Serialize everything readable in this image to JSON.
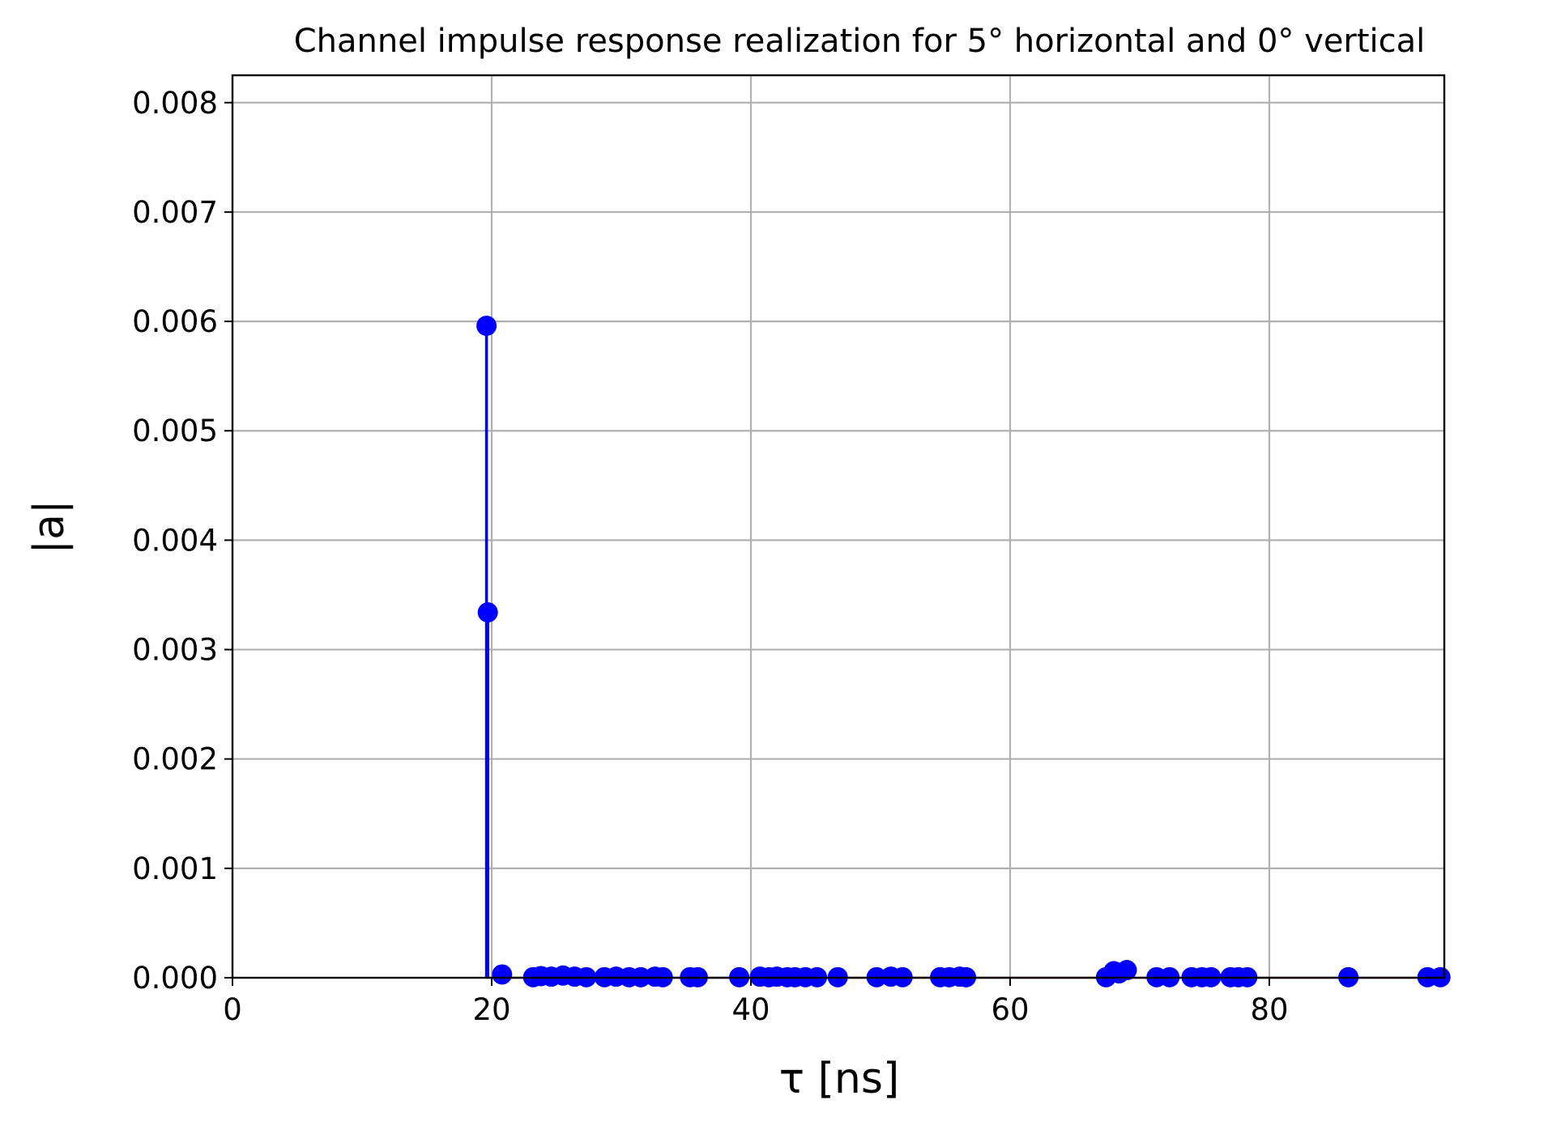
{
  "chart_data": {
    "type": "stem",
    "title": "Channel impulse response realization for 5° horizontal and 0° vertical",
    "xlabel": "τ [ns]",
    "ylabel": "|a|",
    "xlim": [
      0,
      93.5
    ],
    "ylim": [
      0,
      0.00825
    ],
    "x_ticks": [
      0,
      20,
      40,
      60,
      80
    ],
    "x_tick_labels": [
      "0",
      "20",
      "40",
      "60",
      "80"
    ],
    "y_ticks": [
      0,
      0.001,
      0.002,
      0.003,
      0.004,
      0.005,
      0.006,
      0.007,
      0.008
    ],
    "y_tick_labels": [
      "0.000",
      "0.001",
      "0.002",
      "0.003",
      "0.004",
      "0.005",
      "0.006",
      "0.007",
      "0.008"
    ],
    "grid": true,
    "colors": {
      "stem": "#0000ff",
      "baseline": "#d62728"
    },
    "series": [
      {
        "x": [
          19.6,
          19.7,
          20.8,
          23.2,
          23.8,
          24.6,
          25.5,
          26.4,
          27.3,
          28.7,
          29.6,
          30.6,
          31.5,
          32.6,
          33.2,
          35.3,
          35.9,
          39.1,
          40.7,
          41.4,
          42.0,
          42.8,
          43.4,
          44.2,
          45.1,
          46.7,
          49.7,
          50.8,
          51.7,
          54.6,
          55.3,
          56.1,
          56.6,
          67.4,
          68.0,
          68.4,
          69.0,
          71.3,
          72.3,
          74.0,
          74.8,
          75.5,
          77.0,
          77.6,
          78.3,
          86.1,
          92.2,
          93.2
        ],
        "y": [
          0.00596,
          0.00334,
          3e-05,
          5e-06,
          1.5e-05,
          1e-05,
          2e-05,
          1e-05,
          5e-06,
          5e-06,
          1e-05,
          5e-06,
          5e-06,
          1e-05,
          5e-06,
          5e-06,
          5e-06,
          5e-06,
          1e-05,
          5e-06,
          1e-05,
          5e-06,
          5e-06,
          5e-06,
          5e-06,
          5e-06,
          5e-06,
          1e-05,
          5e-06,
          5e-06,
          5e-06,
          1e-05,
          5e-06,
          5e-06,
          6e-05,
          4e-05,
          7e-05,
          5e-06,
          5e-06,
          5e-06,
          5e-06,
          5e-06,
          5e-06,
          5e-06,
          5e-06,
          5e-06,
          5e-06,
          5e-06
        ]
      }
    ]
  }
}
